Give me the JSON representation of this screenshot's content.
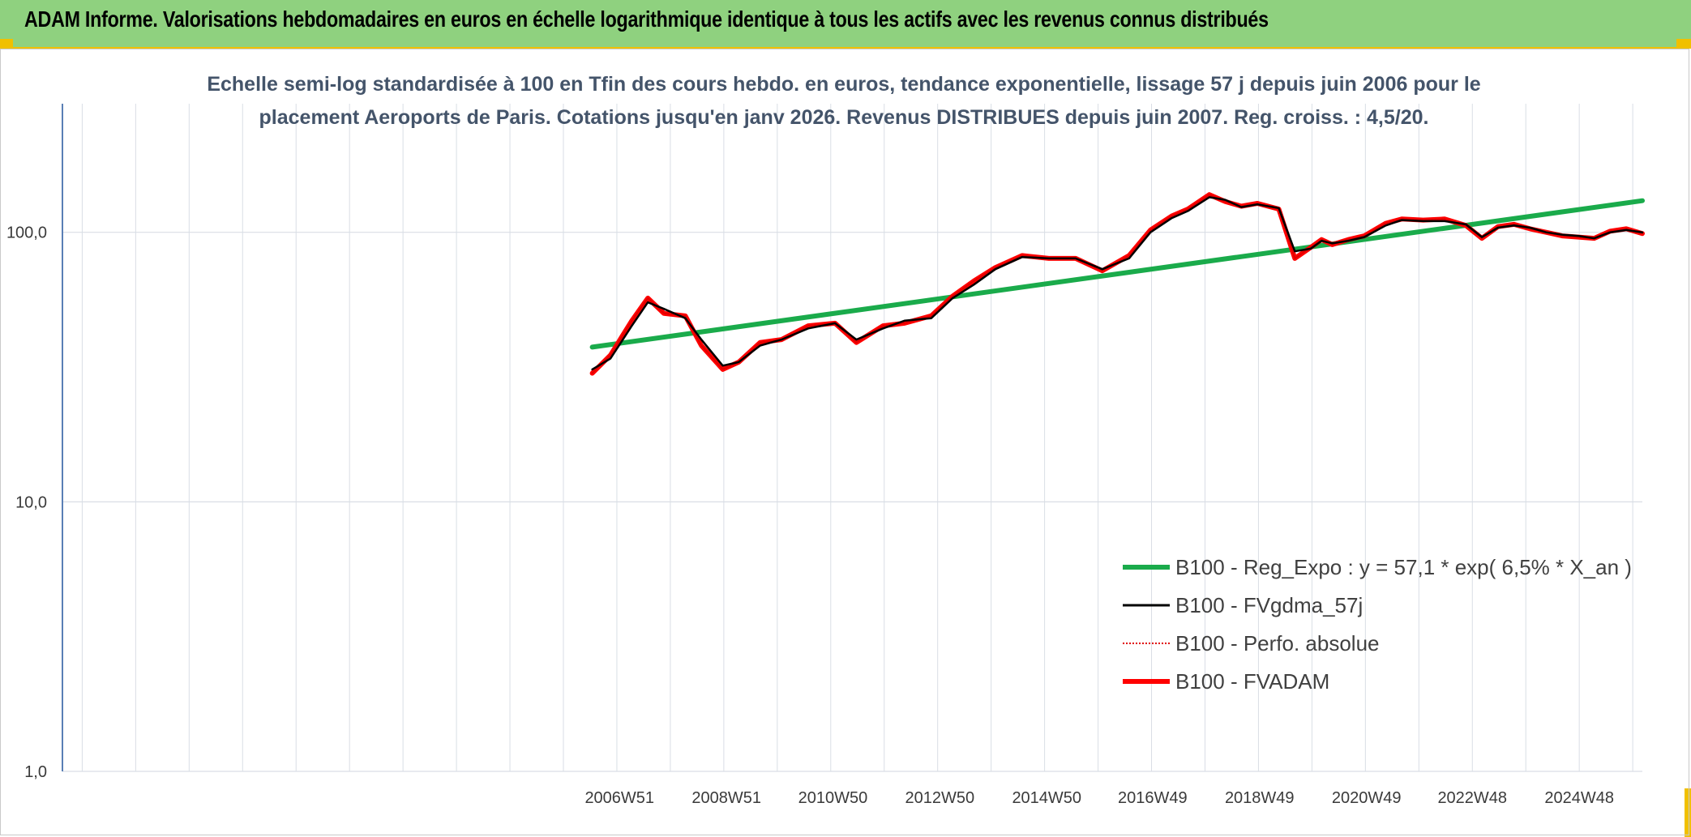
{
  "banner": {
    "title": "ADAM Informe. Valorisations hebdomadaires en euros en échelle logarithmique identique à tous les actifs avec les revenus connus distribués"
  },
  "colors": {
    "banner_bg": "#8fd17f",
    "accent": "#f0c000",
    "regression": "#1aab4b",
    "smoothed": "#000000",
    "performance": "#e00000",
    "fvadam": "#ff0000"
  },
  "chart_data": {
    "type": "line",
    "title_lines": [
      "Echelle semi-log standardisée à 100 en Tfin des cours hebdo. en euros, tendance exponentielle, lissage 57 j depuis juin 2006 pour le",
      "placement Aeroports de Paris. Cotations jusqu'en janv 2026. Revenus DISTRIBUES depuis juin 2007. Reg. croiss. : 4,5/20."
    ],
    "y_scale": "log",
    "ylim": [
      1,
      300
    ],
    "y_ticks": [
      {
        "value": 1,
        "label": "1,0"
      },
      {
        "value": 10,
        "label": "10,0"
      },
      {
        "value": 100,
        "label": "100,0"
      }
    ],
    "xlim": [
      1996.55,
      2026.1
    ],
    "x_ticks": [
      {
        "value": 2006.97,
        "label": "2006W51"
      },
      {
        "value": 2008.97,
        "label": "2008W51"
      },
      {
        "value": 2010.96,
        "label": "2010W50"
      },
      {
        "value": 2012.96,
        "label": "2012W50"
      },
      {
        "value": 2014.96,
        "label": "2014W50"
      },
      {
        "value": 2016.94,
        "label": "2016W49"
      },
      {
        "value": 2018.94,
        "label": "2018W49"
      },
      {
        "value": 2020.94,
        "label": "2020W49"
      },
      {
        "value": 2022.92,
        "label": "2022W48"
      },
      {
        "value": 2024.92,
        "label": "2024W48"
      }
    ],
    "grid": true,
    "legend_position": "bottom-right",
    "series": [
      {
        "name": "B100 - Reg_Expo : y = 57,1 * exp( 6,5% *  X_an )",
        "color": "#1aab4b",
        "style": "thick",
        "x": [
          2006.46,
          2026.1
        ],
        "y": [
          37.5,
          131
        ]
      },
      {
        "name": "B100 - FVgdma_57j",
        "color": "#000000",
        "style": "thin",
        "x": [
          2006.46,
          2006.8,
          2007.2,
          2007.5,
          2007.8,
          2008.2,
          2008.5,
          2008.9,
          2009.2,
          2009.6,
          2010.0,
          2010.5,
          2011.0,
          2011.4,
          2011.9,
          2012.3,
          2012.8,
          2013.2,
          2013.6,
          2014.0,
          2014.5,
          2015.0,
          2015.5,
          2016.0,
          2016.5,
          2016.9,
          2017.3,
          2017.6,
          2018.0,
          2018.3,
          2018.6,
          2018.9,
          2019.3,
          2019.6,
          2019.9,
          2020.1,
          2020.3,
          2020.6,
          2020.9,
          2021.3,
          2021.6,
          2022.0,
          2022.4,
          2022.8,
          2023.1,
          2023.4,
          2023.7,
          2024.0,
          2024.3,
          2024.6,
          2024.9,
          2025.2,
          2025.5,
          2025.8,
          2026.1
        ],
        "y": [
          31,
          34,
          45,
          55,
          52,
          48,
          40,
          32,
          33,
          38,
          40,
          44,
          46,
          40,
          44,
          47,
          48,
          57,
          64,
          73,
          81,
          80,
          80,
          73,
          80,
          100,
          113,
          120,
          135,
          132,
          124,
          127,
          123,
          85,
          87,
          93,
          91,
          93,
          96,
          106,
          111,
          110,
          110,
          107,
          96,
          104,
          106,
          104,
          100,
          98,
          97,
          95,
          100,
          102,
          100
        ]
      },
      {
        "name": "B100 - Perfo. absolue",
        "color": "#e00000",
        "style": "dotted",
        "x": [
          2006.46,
          2006.8,
          2007.2,
          2007.5,
          2007.8,
          2008.2,
          2008.5,
          2008.9,
          2009.2,
          2009.6,
          2010.0,
          2010.5,
          2011.0,
          2011.4,
          2011.9,
          2012.3,
          2012.8,
          2013.2,
          2013.6,
          2014.0,
          2014.5,
          2015.0,
          2015.5,
          2016.0,
          2016.5,
          2016.9,
          2017.3,
          2017.6,
          2018.0,
          2018.3,
          2018.6,
          2018.9,
          2019.3,
          2019.6,
          2019.9,
          2020.1,
          2020.3,
          2020.6,
          2020.9,
          2021.3,
          2021.6,
          2022.0,
          2022.4,
          2022.8,
          2023.1,
          2023.4,
          2023.7,
          2024.0,
          2024.3,
          2024.6,
          2024.9,
          2025.2,
          2025.5,
          2025.8,
          2026.1
        ],
        "y": [
          30,
          35,
          47,
          57,
          50,
          49,
          38,
          31,
          33,
          39,
          40,
          45,
          46,
          39,
          45,
          46,
          49,
          58,
          66,
          74,
          82,
          80,
          80,
          72,
          82,
          102,
          115,
          122,
          138,
          130,
          125,
          128,
          122,
          80,
          88,
          94,
          90,
          94,
          97,
          108,
          112,
          111,
          112,
          106,
          95,
          105,
          107,
          103,
          100,
          97,
          96,
          95,
          101,
          103,
          99
        ]
      },
      {
        "name": "B100 - FVADAM",
        "color": "#ff0000",
        "style": "thick",
        "x": [
          2006.46,
          2006.8,
          2007.2,
          2007.5,
          2007.8,
          2008.2,
          2008.5,
          2008.9,
          2009.2,
          2009.6,
          2010.0,
          2010.5,
          2011.0,
          2011.4,
          2011.9,
          2012.3,
          2012.8,
          2013.2,
          2013.6,
          2014.0,
          2014.5,
          2015.0,
          2015.5,
          2016.0,
          2016.5,
          2016.9,
          2017.3,
          2017.6,
          2018.0,
          2018.3,
          2018.6,
          2018.9,
          2019.3,
          2019.6,
          2019.9,
          2020.1,
          2020.3,
          2020.6,
          2020.9,
          2021.3,
          2021.6,
          2022.0,
          2022.4,
          2022.8,
          2023.1,
          2023.4,
          2023.7,
          2024.0,
          2024.3,
          2024.6,
          2024.9,
          2025.2,
          2025.5,
          2025.8,
          2026.1
        ],
        "y": [
          30,
          35,
          47,
          57,
          50,
          49,
          38,
          31,
          33,
          39,
          40,
          45,
          46,
          39,
          45,
          46,
          49,
          58,
          66,
          74,
          82,
          80,
          80,
          72,
          82,
          102,
          115,
          122,
          138,
          130,
          125,
          128,
          122,
          80,
          88,
          94,
          90,
          94,
          97,
          108,
          112,
          111,
          112,
          106,
          95,
          105,
          107,
          103,
          100,
          97,
          96,
          95,
          101,
          103,
          99
        ]
      }
    ]
  }
}
